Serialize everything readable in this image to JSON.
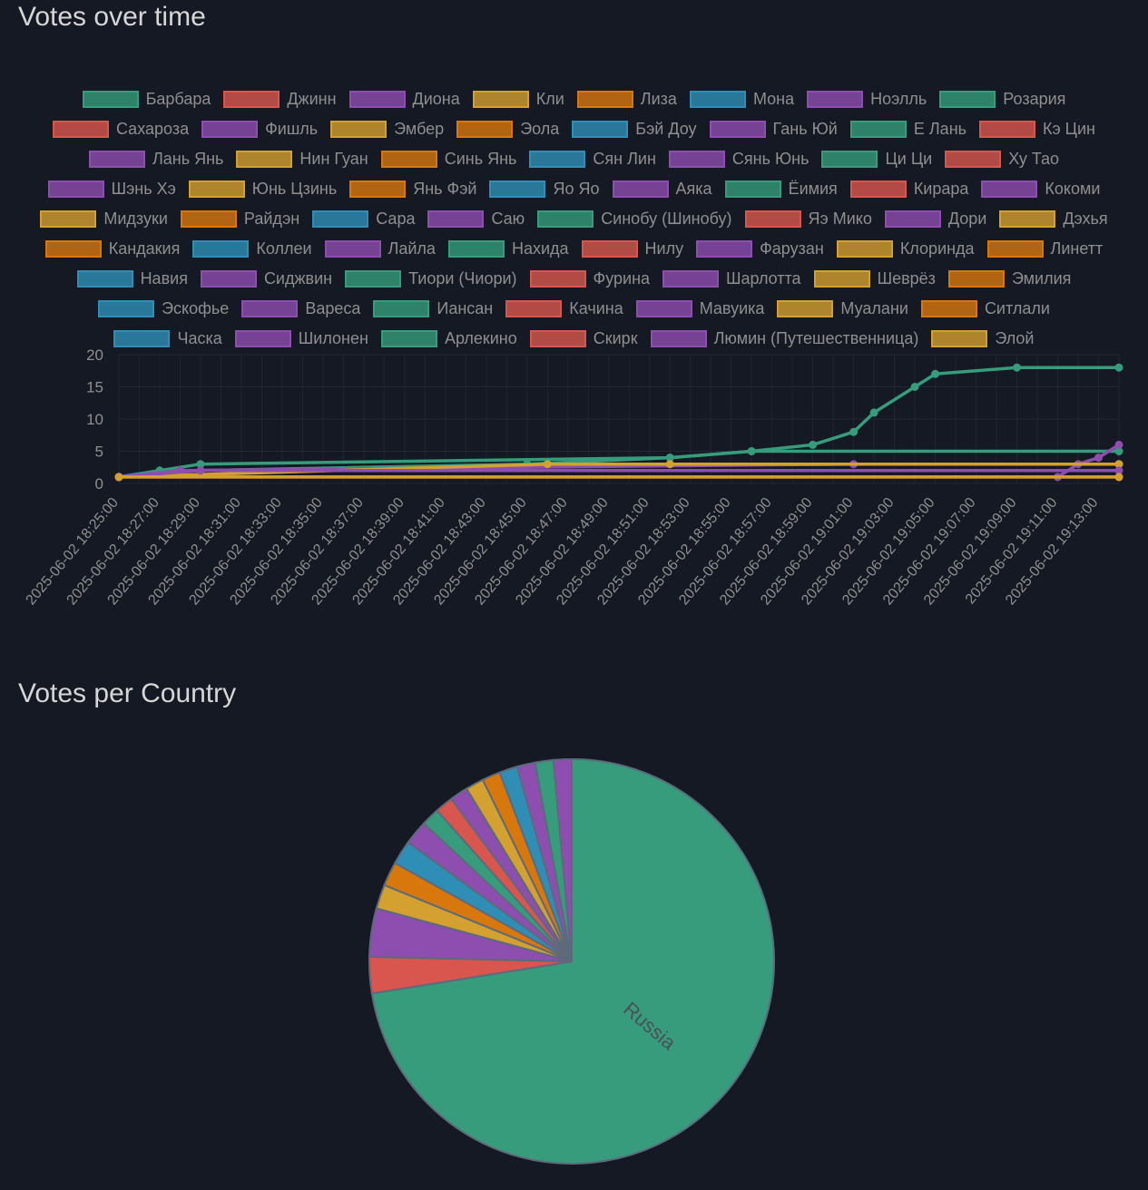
{
  "charts": {
    "votes_over_time": {
      "title": "Votes over time"
    },
    "votes_per_country": {
      "title": "Votes per Country"
    }
  },
  "palette": [
    "#369c7c",
    "#d9564f",
    "#8e4eb0",
    "#d4a02f",
    "#d8770c",
    "#2e8eb6",
    "#8e4eb0"
  ],
  "legend": [
    {
      "label": "Барбара",
      "color": "#369c7c"
    },
    {
      "label": "Джинн",
      "color": "#d9564f"
    },
    {
      "label": "Диона",
      "color": "#8e4eb0"
    },
    {
      "label": "Кли",
      "color": "#d4a02f"
    },
    {
      "label": "Лиза",
      "color": "#d8770c"
    },
    {
      "label": "Мона",
      "color": "#2e8eb6"
    },
    {
      "label": "Ноэлль",
      "color": "#8e4eb0"
    },
    {
      "label": "Розария",
      "color": "#369c7c"
    },
    {
      "label": "Сахароза",
      "color": "#d9564f"
    },
    {
      "label": "Фишль",
      "color": "#8e4eb0"
    },
    {
      "label": "Эмбер",
      "color": "#d4a02f"
    },
    {
      "label": "Эола",
      "color": "#d8770c"
    },
    {
      "label": "Бэй Доу",
      "color": "#2e8eb6"
    },
    {
      "label": "Гань Юй",
      "color": "#8e4eb0"
    },
    {
      "label": "Е Лань",
      "color": "#369c7c"
    },
    {
      "label": "Кэ Цин",
      "color": "#d9564f"
    },
    {
      "label": "Лань Янь",
      "color": "#8e4eb0"
    },
    {
      "label": "Нин Гуан",
      "color": "#d4a02f"
    },
    {
      "label": "Синь Янь",
      "color": "#d8770c"
    },
    {
      "label": "Сян Лин",
      "color": "#2e8eb6"
    },
    {
      "label": "Сянь Юнь",
      "color": "#8e4eb0"
    },
    {
      "label": "Ци Ци",
      "color": "#369c7c"
    },
    {
      "label": "Ху Тао",
      "color": "#d9564f"
    },
    {
      "label": "Шэнь Хэ",
      "color": "#8e4eb0"
    },
    {
      "label": "Юнь Цзинь",
      "color": "#d4a02f"
    },
    {
      "label": "Янь Фэй",
      "color": "#d8770c"
    },
    {
      "label": "Яо Яо",
      "color": "#2e8eb6"
    },
    {
      "label": "Аяка",
      "color": "#8e4eb0"
    },
    {
      "label": "Ёимия",
      "color": "#369c7c"
    },
    {
      "label": "Кирара",
      "color": "#d9564f"
    },
    {
      "label": "Кокоми",
      "color": "#8e4eb0"
    },
    {
      "label": "Мидзуки",
      "color": "#d4a02f"
    },
    {
      "label": "Райдэн",
      "color": "#d8770c"
    },
    {
      "label": "Сара",
      "color": "#2e8eb6"
    },
    {
      "label": "Саю",
      "color": "#8e4eb0"
    },
    {
      "label": "Синобу (Шинобу)",
      "color": "#369c7c"
    },
    {
      "label": "Яэ Мико",
      "color": "#d9564f"
    },
    {
      "label": "Дори",
      "color": "#8e4eb0"
    },
    {
      "label": "Дэхья",
      "color": "#d4a02f"
    },
    {
      "label": "Кандакия",
      "color": "#d8770c"
    },
    {
      "label": "Коллеи",
      "color": "#2e8eb6"
    },
    {
      "label": "Лайла",
      "color": "#8e4eb0"
    },
    {
      "label": "Нахида",
      "color": "#369c7c"
    },
    {
      "label": "Нилу",
      "color": "#d9564f"
    },
    {
      "label": "Фарузан",
      "color": "#8e4eb0"
    },
    {
      "label": "Клоринда",
      "color": "#d4a02f"
    },
    {
      "label": "Линетт",
      "color": "#d8770c"
    },
    {
      "label": "Навия",
      "color": "#2e8eb6"
    },
    {
      "label": "Сиджвин",
      "color": "#8e4eb0"
    },
    {
      "label": "Тиори (Чиори)",
      "color": "#369c7c"
    },
    {
      "label": "Фурина",
      "color": "#d9564f"
    },
    {
      "label": "Шарлотта",
      "color": "#8e4eb0"
    },
    {
      "label": "Шеврёз",
      "color": "#d4a02f"
    },
    {
      "label": "Эмилия",
      "color": "#d8770c"
    },
    {
      "label": "Эскофье",
      "color": "#2e8eb6"
    },
    {
      "label": "Вареса",
      "color": "#8e4eb0"
    },
    {
      "label": "Иансан",
      "color": "#369c7c"
    },
    {
      "label": "Качина",
      "color": "#d9564f"
    },
    {
      "label": "Мавуика",
      "color": "#8e4eb0"
    },
    {
      "label": "Муалани",
      "color": "#d4a02f"
    },
    {
      "label": "Ситлали",
      "color": "#d8770c"
    },
    {
      "label": "Часка",
      "color": "#2e8eb6"
    },
    {
      "label": "Шилонен",
      "color": "#8e4eb0"
    },
    {
      "label": "Арлекино",
      "color": "#369c7c"
    },
    {
      "label": "Скирк",
      "color": "#d9564f"
    },
    {
      "label": "Люмин (Путешественница)",
      "color": "#8e4eb0"
    },
    {
      "label": "Элой",
      "color": "#d4a02f"
    }
  ],
  "chart_data": [
    {
      "type": "line",
      "title": "Votes over time",
      "ylim": [
        0,
        20
      ],
      "yticks": [
        0,
        5,
        10,
        15,
        20
      ],
      "xlim": [
        "2025-06-02 18:25:00",
        "2025-06-02 19:14:00"
      ],
      "xticks": [
        "2025-06-02 18:25:00",
        "2025-06-02 18:27:00",
        "2025-06-02 18:29:00",
        "2025-06-02 18:31:00",
        "2025-06-02 18:33:00",
        "2025-06-02 18:35:00",
        "2025-06-02 18:37:00",
        "2025-06-02 18:39:00",
        "2025-06-02 18:41:00",
        "2025-06-02 18:43:00",
        "2025-06-02 18:45:00",
        "2025-06-02 18:47:00",
        "2025-06-02 18:49:00",
        "2025-06-02 18:51:00",
        "2025-06-02 18:53:00",
        "2025-06-02 18:55:00",
        "2025-06-02 18:57:00",
        "2025-06-02 18:59:00",
        "2025-06-02 19:01:00",
        "2025-06-02 19:03:00",
        "2025-06-02 19:05:00",
        "2025-06-02 19:07:00",
        "2025-06-02 19:09:00",
        "2025-06-02 19:11:00",
        "2025-06-02 19:13:00"
      ],
      "grid": true,
      "legend_position": "top",
      "series": [
        {
          "name": "Барбара",
          "color": "#369c7c",
          "points": [
            [
              "2025-06-02 18:25:00",
              1
            ],
            [
              "2025-06-02 18:27:00",
              2
            ],
            [
              "2025-06-02 18:29:00",
              2
            ],
            [
              "2025-06-02 18:45:00",
              3
            ],
            [
              "2025-06-02 18:52:00",
              4
            ],
            [
              "2025-06-02 18:56:00",
              5
            ],
            [
              "2025-06-02 18:59:00",
              6
            ],
            [
              "2025-06-02 19:01:00",
              8
            ],
            [
              "2025-06-02 19:02:00",
              11
            ],
            [
              "2025-06-02 19:04:00",
              15
            ],
            [
              "2025-06-02 19:05:00",
              17
            ],
            [
              "2025-06-02 19:09:00",
              18
            ],
            [
              "2025-06-02 19:14:00",
              18
            ]
          ]
        },
        {
          "name": "Розария",
          "color": "#369c7c",
          "points": [
            [
              "2025-06-02 18:25:00",
              1
            ],
            [
              "2025-06-02 18:29:00",
              3
            ],
            [
              "2025-06-02 18:52:00",
              4
            ],
            [
              "2025-06-02 18:56:00",
              5
            ],
            [
              "2025-06-02 19:14:00",
              5
            ]
          ]
        },
        {
          "name": "Диона",
          "color": "#8e4eb0",
          "points": [
            [
              "2025-06-02 18:25:00",
              1
            ],
            [
              "2025-06-02 18:28:00",
              2
            ],
            [
              "2025-06-02 19:01:00",
              3
            ],
            [
              "2025-06-02 19:14:00",
              3
            ]
          ]
        },
        {
          "name": "Люмин (Путешественница)",
          "color": "#8e4eb0",
          "points": [
            [
              "2025-06-02 19:11:00",
              1
            ],
            [
              "2025-06-02 19:12:00",
              3
            ],
            [
              "2025-06-02 19:13:00",
              4
            ],
            [
              "2025-06-02 19:14:00",
              6
            ]
          ]
        },
        {
          "name": "Кли",
          "color": "#d4a02f",
          "points": [
            [
              "2025-06-02 18:25:00",
              1
            ],
            [
              "2025-06-02 18:46:00",
              3
            ],
            [
              "2025-06-02 18:52:00",
              3
            ],
            [
              "2025-06-02 19:14:00",
              3
            ]
          ]
        },
        {
          "name": "Ноэлль",
          "color": "#8e4eb0",
          "points": [
            [
              "2025-06-02 18:25:00",
              1
            ],
            [
              "2025-06-02 18:29:00",
              2
            ],
            [
              "2025-06-02 19:14:00",
              2
            ]
          ]
        },
        {
          "name": "Джинн",
          "color": "#d9564f",
          "points": [
            [
              "2025-06-02 18:25:00",
              1
            ],
            [
              "2025-06-02 19:14:00",
              1
            ]
          ]
        },
        {
          "name": "Элой",
          "color": "#d4a02f",
          "points": [
            [
              "2025-06-02 18:25:00",
              1
            ],
            [
              "2025-06-02 19:14:00",
              1
            ]
          ]
        }
      ]
    },
    {
      "type": "pie",
      "title": "Votes per Country",
      "categories": [
        "Russia",
        "",
        "",
        "",
        "",
        "",
        "",
        "",
        "",
        "",
        "",
        "",
        "",
        "",
        "",
        ""
      ],
      "values": [
        75,
        3,
        4,
        2,
        2,
        2,
        2,
        1.5,
        1.5,
        1.5,
        1.5,
        1.5,
        1.5,
        1.5,
        1.5,
        1.5
      ],
      "colors": [
        "#369c7c",
        "#d9564f",
        "#8e4eb0",
        "#d4a02f",
        "#d8770c",
        "#2e8eb6",
        "#8e4eb0",
        "#369c7c",
        "#d9564f",
        "#8e4eb0",
        "#d4a02f",
        "#d8770c",
        "#2e8eb6",
        "#8e4eb0",
        "#369c7c",
        "#8e4eb0"
      ]
    }
  ]
}
